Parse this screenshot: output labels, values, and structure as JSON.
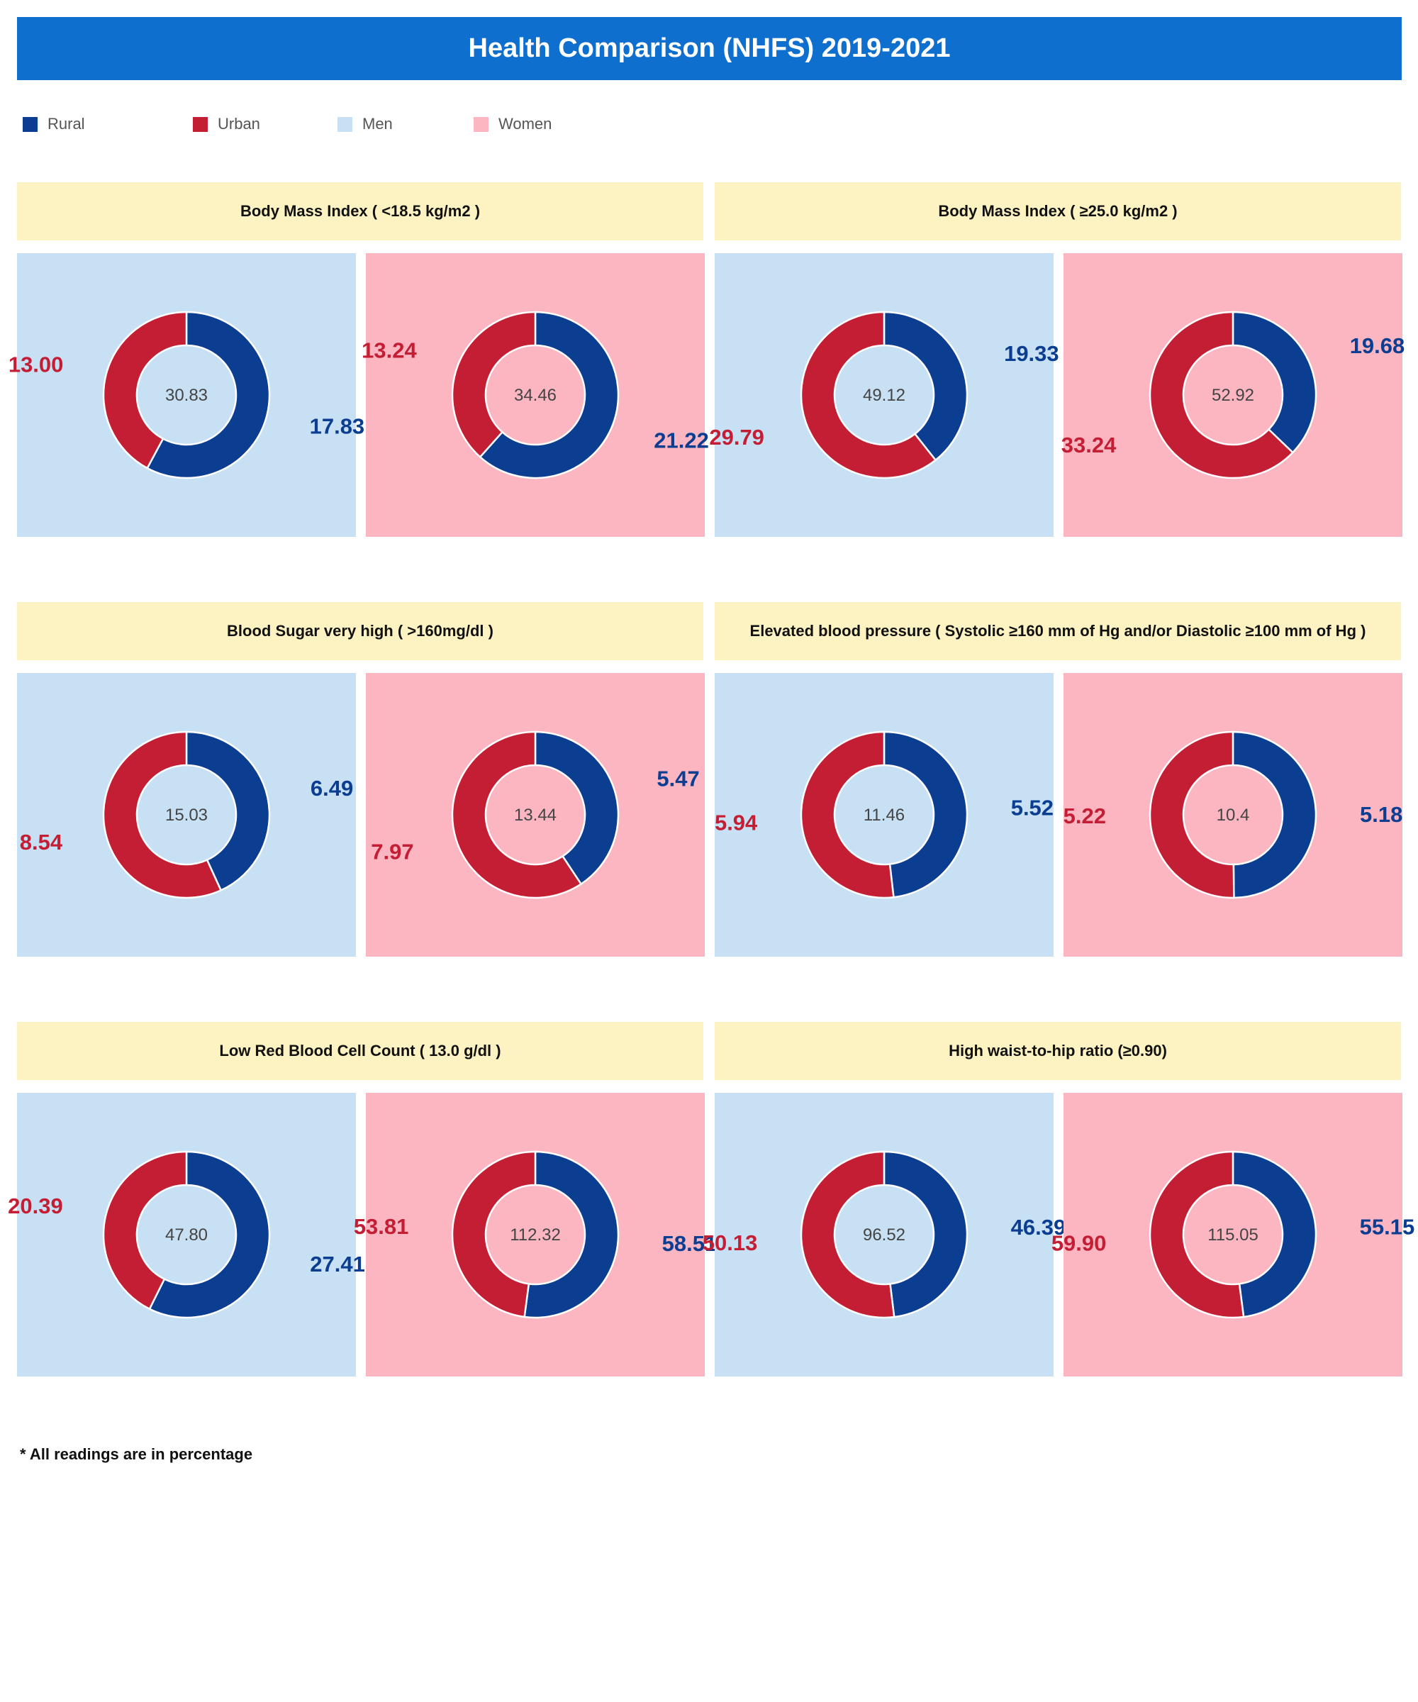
{
  "header": {
    "title": "Health Comparison (NHFS) 2019-2021"
  },
  "legend": [
    {
      "label": "Rural",
      "color": "#0b3d91"
    },
    {
      "label": "Urban",
      "color": "#c41e35"
    },
    {
      "label": "Men",
      "color": "#c7e0f3"
    },
    {
      "label": "Women",
      "color": "#fbb6c2"
    }
  ],
  "colors": {
    "rural": "#0b3d91",
    "urban": "#c41e35",
    "men_bg": "#c7e0f3",
    "women_bg": "#fbb6c2",
    "header_bg": "#fdf2c2",
    "title_bg": "#0f6fce"
  },
  "footnote": "* All readings are in percentage",
  "chart_data": [
    {
      "type": "pie",
      "section": "Body Mass Index ( <18.5 kg/m2 )",
      "group": "Men",
      "total": "30.83",
      "rural": 17.83,
      "urban": 13.0,
      "rural_label": "17.83",
      "urban_label": "13.00"
    },
    {
      "type": "pie",
      "section": "Body Mass Index ( <18.5 kg/m2 )",
      "group": "Women",
      "total": "34.46",
      "rural": 21.22,
      "urban": 13.24,
      "rural_label": "21.22",
      "urban_label": "13.24"
    },
    {
      "type": "pie",
      "section": "Body Mass Index ( ≥25.0 kg/m2 )",
      "group": "Men",
      "total": "49.12",
      "rural": 19.33,
      "urban": 29.79,
      "rural_label": "19.33",
      "urban_label": "29.79"
    },
    {
      "type": "pie",
      "section": "Body Mass Index ( ≥25.0 kg/m2 )",
      "group": "Women",
      "total": "52.92",
      "rural": 19.68,
      "urban": 33.24,
      "rural_label": "19.68",
      "urban_label": "33.24"
    },
    {
      "type": "pie",
      "section": "Blood Sugar very high ( >160mg/dl )",
      "group": "Men",
      "total": "15.03",
      "rural": 6.49,
      "urban": 8.54,
      "rural_label": "6.49",
      "urban_label": "8.54"
    },
    {
      "type": "pie",
      "section": "Blood Sugar very high ( >160mg/dl )",
      "group": "Women",
      "total": "13.44",
      "rural": 5.47,
      "urban": 7.97,
      "rural_label": "5.47",
      "urban_label": "7.97"
    },
    {
      "type": "pie",
      "section": "Elevated blood pressure ( Systolic ≥160 mm of Hg and/or Diastolic ≥100 mm of Hg )",
      "group": "Men",
      "total": "11.46",
      "rural": 5.52,
      "urban": 5.94,
      "rural_label": "5.52",
      "urban_label": "5.94"
    },
    {
      "type": "pie",
      "section": "Elevated blood pressure ( Systolic ≥160 mm of Hg and/or Diastolic ≥100 mm of Hg )",
      "group": "Women",
      "total": "10.4",
      "rural": 5.18,
      "urban": 5.22,
      "rural_label": "5.18",
      "urban_label": "5.22"
    },
    {
      "type": "pie",
      "section": "Low Red Blood Cell Count ( 13.0 g/dl )",
      "group": "Men",
      "total": "47.80",
      "rural": 27.41,
      "urban": 20.39,
      "rural_label": "27.41",
      "urban_label": "20.39"
    },
    {
      "type": "pie",
      "section": "Low Red Blood Cell Count ( 13.0 g/dl )",
      "group": "Women",
      "total": "112.32",
      "rural": 58.51,
      "urban": 53.81,
      "rural_label": "58.51",
      "urban_label": "53.81"
    },
    {
      "type": "pie",
      "section": "High waist-to-hip ratio (≥0.90)",
      "group": "Men",
      "total": "96.52",
      "rural": 46.39,
      "urban": 50.13,
      "rural_label": "46.39",
      "urban_label": "50.13"
    },
    {
      "type": "pie",
      "section": "High waist-to-hip ratio (≥0.90)",
      "group": "Women",
      "total": "115.05",
      "rural": 55.15,
      "urban": 59.9,
      "rural_label": "55.15",
      "urban_label": "59.90"
    }
  ]
}
